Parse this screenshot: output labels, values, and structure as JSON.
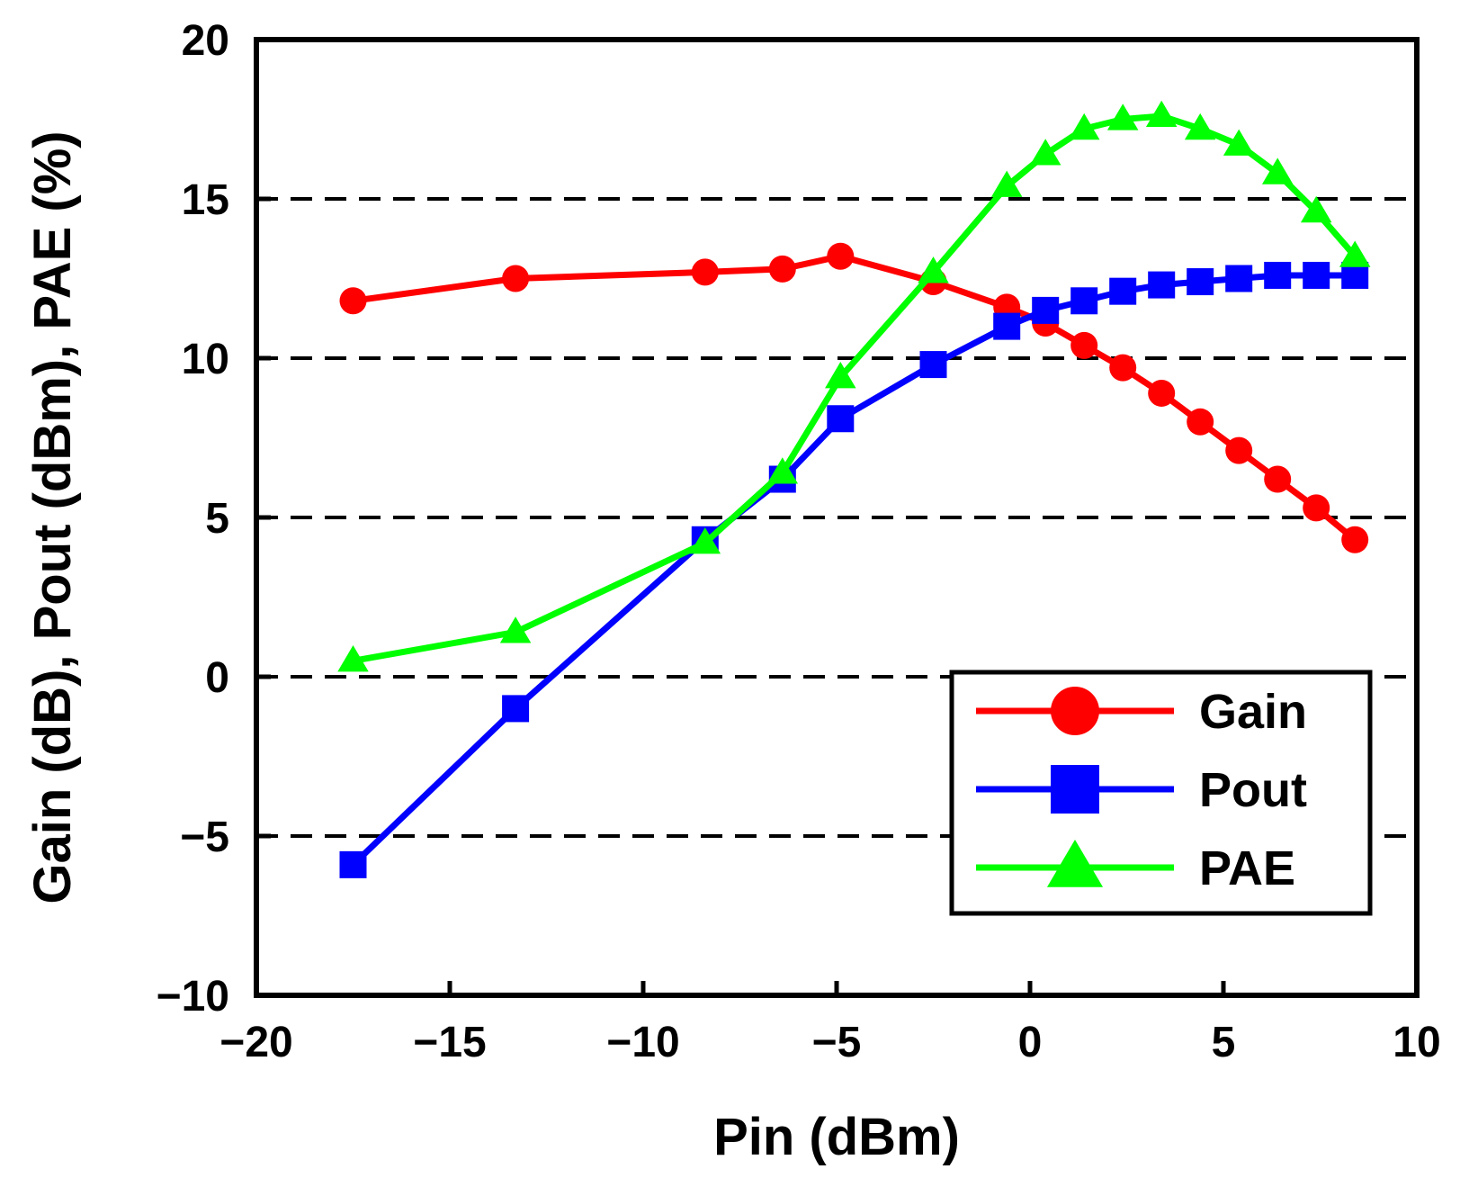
{
  "chart_data": {
    "type": "line",
    "title": "",
    "xlabel": "Pin (dBm)",
    "ylabel": "Gain (dB), Pout (dBm), PAE (%)",
    "xlim": [
      -20,
      10
    ],
    "ylim": [
      -10,
      20
    ],
    "x_ticks": [
      -20,
      -15,
      -10,
      -5,
      0,
      5,
      10
    ],
    "x_tick_labels": [
      "−20",
      "−15",
      "−10",
      "−5",
      "0",
      "5",
      "10"
    ],
    "y_ticks": [
      -10,
      -5,
      0,
      5,
      10,
      15,
      20
    ],
    "y_tick_labels": [
      "−10",
      "−5",
      "0",
      "5",
      "10",
      "15",
      "20"
    ],
    "grid": "horizontal dashed at -5, 0, 5, 10, 15",
    "legend_position": "bottom-right",
    "series": [
      {
        "name": "Gain",
        "color": "#ff0000",
        "marker": "circle",
        "x": [
          -17.5,
          -13.3,
          -8.4,
          -6.4,
          -4.9,
          -2.5,
          -0.6,
          0.4,
          1.4,
          2.4,
          3.4,
          4.4,
          5.4,
          6.4,
          7.4,
          8.4
        ],
        "y": [
          11.8,
          12.5,
          12.7,
          12.8,
          13.2,
          12.4,
          11.6,
          11.1,
          10.4,
          9.7,
          8.9,
          8.0,
          7.1,
          6.2,
          5.3,
          4.3
        ]
      },
      {
        "name": "Pout",
        "color": "#0000ff",
        "marker": "square",
        "x": [
          -17.5,
          -13.3,
          -8.4,
          -6.4,
          -4.9,
          -2.5,
          -0.6,
          0.4,
          1.4,
          2.4,
          3.4,
          4.4,
          5.4,
          6.4,
          7.4,
          8.4
        ],
        "y": [
          -5.9,
          -1.0,
          4.3,
          6.2,
          8.1,
          9.8,
          11.0,
          11.5,
          11.8,
          12.1,
          12.3,
          12.4,
          12.5,
          12.6,
          12.6,
          12.6
        ]
      },
      {
        "name": "PAE",
        "color": "#00ff00",
        "marker": "triangle",
        "x": [
          -17.5,
          -13.3,
          -8.4,
          -6.4,
          -4.9,
          -2.5,
          -0.6,
          0.4,
          1.4,
          2.4,
          3.4,
          4.4,
          5.4,
          6.4,
          7.4,
          8.4
        ],
        "y": [
          0.5,
          1.4,
          4.2,
          6.4,
          9.4,
          12.7,
          15.4,
          16.4,
          17.2,
          17.5,
          17.6,
          17.2,
          16.7,
          15.8,
          14.6,
          13.2
        ]
      }
    ]
  }
}
